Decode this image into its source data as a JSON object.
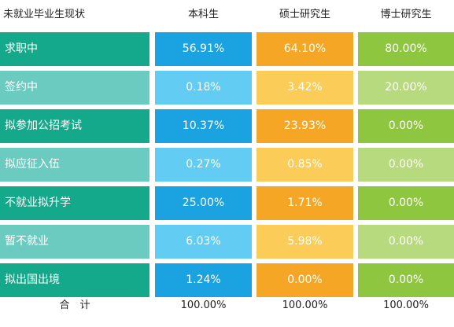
{
  "header": {
    "status": "未就业毕业生现状",
    "bachelor": "本科生",
    "master": "硕士研究生",
    "doctor": "博士研究生"
  },
  "rows": [
    {
      "label": "求职中",
      "bachelor": "56.91%",
      "master": "64.10%",
      "doctor": "80.00%"
    },
    {
      "label": "签约中",
      "bachelor": "0.18%",
      "master": "3.42%",
      "doctor": "20.00%"
    },
    {
      "label": "拟参加公招考试",
      "bachelor": "10.37%",
      "master": "23.93%",
      "doctor": "0.00%"
    },
    {
      "label": "拟应征入伍",
      "bachelor": "0.27%",
      "master": "0.85%",
      "doctor": "0.00%"
    },
    {
      "label": "不就业拟升学",
      "bachelor": "25.00%",
      "master": "1.71%",
      "doctor": "0.00%"
    },
    {
      "label": "暂不就业",
      "bachelor": "6.03%",
      "master": "5.98%",
      "doctor": "0.00%"
    },
    {
      "label": "拟出国出境",
      "bachelor": "1.24%",
      "master": "0.00%",
      "doctor": "0.00%"
    }
  ],
  "total": {
    "label": "合　计",
    "bachelor": "100.00%",
    "master": "100.00%",
    "doctor": "100.00%"
  },
  "colors": {
    "label_dark": "#14a98a",
    "label_light": "#6ccbc0",
    "bachelor_dark": "#1aa3e0",
    "bachelor_light": "#62ccf3",
    "master_dark": "#f5a624",
    "master_light": "#fbcd58",
    "doctor_dark": "#8ec63f",
    "doctor_light": "#b8da7e"
  },
  "chart_data": {
    "type": "table",
    "columns": [
      "未就业毕业生现状",
      "本科生",
      "硕士研究生",
      "博士研究生"
    ],
    "rows": [
      [
        "求职中",
        56.91,
        64.1,
        80.0
      ],
      [
        "签约中",
        0.18,
        3.42,
        20.0
      ],
      [
        "拟参加公招考试",
        10.37,
        23.93,
        0.0
      ],
      [
        "拟应征入伍",
        0.27,
        0.85,
        0.0
      ],
      [
        "不就业拟升学",
        25.0,
        1.71,
        0.0
      ],
      [
        "暂不就业",
        6.03,
        5.98,
        0.0
      ],
      [
        "拟出国出境",
        1.24,
        0.0,
        0.0
      ]
    ],
    "totals": [
      100.0,
      100.0,
      100.0
    ]
  }
}
